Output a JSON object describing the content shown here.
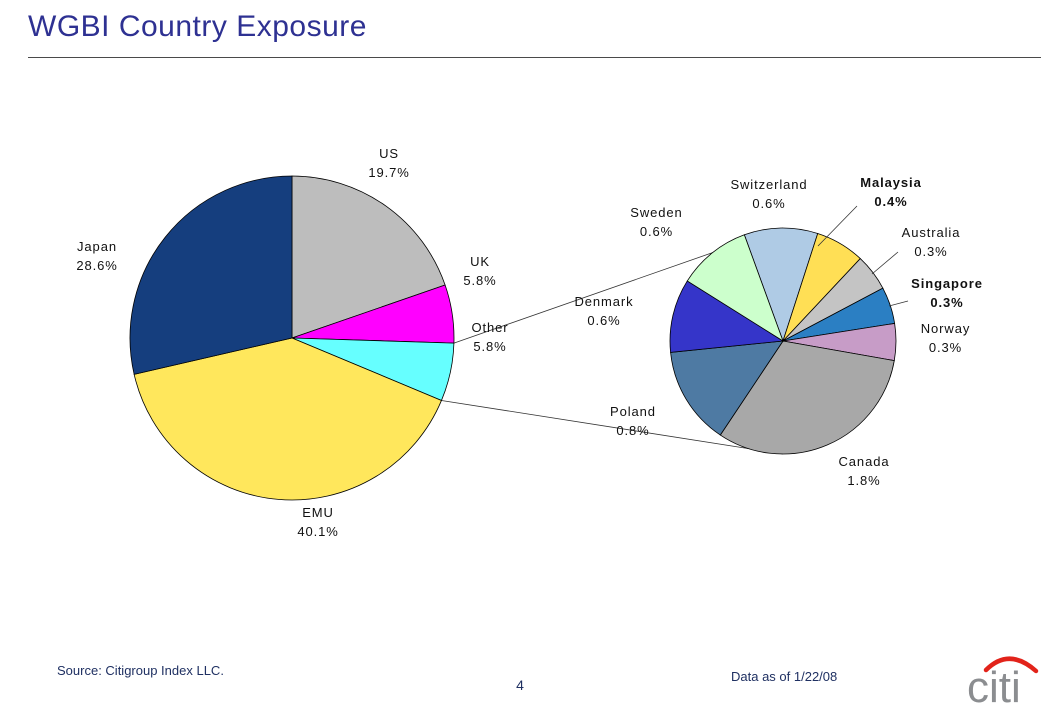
{
  "page": {
    "title": "WGBI Country Exposure",
    "page_number": "4",
    "source": "Source: Citigroup Index LLC.",
    "data_as_of": "Data as of 1/22/08",
    "logo_text": "citi",
    "logo_arc_color": "#E2231A",
    "title_color": "#2E3192"
  },
  "chart_data": {
    "type": "pie",
    "subtype": "pie-of-pie",
    "title": "WGBI Country Exposure",
    "unit": "%",
    "main_pie": {
      "start_angle_deg": 0,
      "slices": [
        {
          "label": "US",
          "value": 19.7,
          "display": "19.7%",
          "color": "#BDBDBD"
        },
        {
          "label": "UK",
          "value": 5.8,
          "display": "5.8%",
          "color": "#FF00FF"
        },
        {
          "label": "Other",
          "value": 5.8,
          "display": "5.8%",
          "color": "#66FFFF"
        },
        {
          "label": "EMU",
          "value": 40.1,
          "display": "40.1%",
          "color": "#FFE75C"
        },
        {
          "label": "Japan",
          "value": 28.6,
          "display": "28.6%",
          "color": "#153E7E"
        }
      ]
    },
    "secondary_pie": {
      "represents_slice": "Other",
      "start_angle_deg": -20,
      "slices": [
        {
          "label": "Switzerland",
          "value": 0.6,
          "display": "0.6%",
          "color": "#AFCBE5",
          "bold": false
        },
        {
          "label": "Malaysia",
          "value": 0.4,
          "display": "0.4%",
          "color": "#FFDF55",
          "bold": true
        },
        {
          "label": "Australia",
          "value": 0.3,
          "display": "0.3%",
          "color": "#C4C4C4",
          "bold": false
        },
        {
          "label": "Singapore",
          "value": 0.3,
          "display": "0.3%",
          "color": "#2B7FC3",
          "bold": true
        },
        {
          "label": "Norway",
          "value": 0.3,
          "display": "0.3%",
          "color": "#C79CC7",
          "bold": false
        },
        {
          "label": "Canada",
          "value": 1.8,
          "display": "1.8%",
          "color": "#A8A8A8",
          "bold": false
        },
        {
          "label": "Poland",
          "value": 0.8,
          "display": "0.8%",
          "color": "#4E7AA3",
          "bold": false
        },
        {
          "label": "Denmark",
          "value": 0.6,
          "display": "0.6%",
          "color": "#3535C9",
          "bold": false
        },
        {
          "label": "Sweden",
          "value": 0.6,
          "display": "0.6%",
          "color": "#CCFFCC",
          "bold": false
        }
      ]
    }
  }
}
